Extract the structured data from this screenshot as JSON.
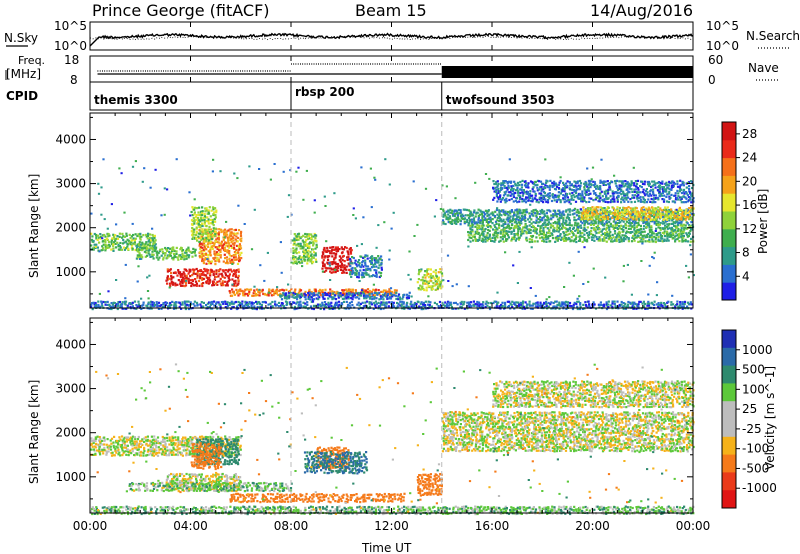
{
  "header": {
    "station": "Prince George (fitACF)",
    "beam": "Beam 15",
    "date": "14/Aug/2016"
  },
  "noise_panel": {
    "left_label": "N.Sky",
    "right_label": "N.Search",
    "tick_top": "10^5",
    "tick_bottom": "10^0",
    "line_color": "#000000"
  },
  "freq_panel": {
    "left_label_1": "Freq.",
    "left_label_2": "[MHz]",
    "right_label": "Nave",
    "left_tick_top": "18",
    "left_tick_bottom": "8",
    "right_tick_top": "60",
    "right_tick_bottom": "0"
  },
  "cpid_panel": {
    "label": "CPID",
    "segments": [
      {
        "name": "themis 3300",
        "start_hour": 0
      },
      {
        "name": "rbsp 200",
        "start_hour": 8
      },
      {
        "name": "twofsound 3503",
        "start_hour": 14
      }
    ]
  },
  "chart_data": [
    {
      "type": "heatmap",
      "panel": "power",
      "ylabel": "Slant Range [km]",
      "xlim": [
        0,
        24
      ],
      "ylim": [
        180,
        4600
      ],
      "y_ticks": [
        1000,
        2000,
        3000,
        4000
      ],
      "colorbar": {
        "label": "Power [dB]",
        "ticks": [
          "4",
          "8",
          "12",
          "16",
          "20",
          "24",
          "28"
        ],
        "colors": [
          "#1f1fe6",
          "#2a6fd0",
          "#2e9b8a",
          "#3fae4e",
          "#8fd23a",
          "#e6e62e",
          "#f5a21a",
          "#f5701a",
          "#ea2a1a",
          "#d21414"
        ],
        "range": [
          0,
          30
        ]
      },
      "regions": [
        {
          "x": [
            0.0,
            2.6
          ],
          "y": [
            1500,
            1900
          ],
          "value": 12
        },
        {
          "x": [
            1.8,
            4.2
          ],
          "y": [
            1300,
            1600
          ],
          "value": 11
        },
        {
          "x": [
            3.0,
            5.9
          ],
          "y": [
            700,
            1100
          ],
          "value": 27
        },
        {
          "x": [
            4.3,
            6.0
          ],
          "y": [
            1200,
            2000
          ],
          "value": 21
        },
        {
          "x": [
            4.0,
            5.0
          ],
          "y": [
            1700,
            2500
          ],
          "value": 14
        },
        {
          "x": [
            5.5,
            12.2
          ],
          "y": [
            480,
            640
          ],
          "value": 22
        },
        {
          "x": [
            7.5,
            12.7
          ],
          "y": [
            400,
            560
          ],
          "value": 5
        },
        {
          "x": [
            9.2,
            10.4
          ],
          "y": [
            1000,
            1600
          ],
          "value": 29
        },
        {
          "x": [
            8.0,
            9.0
          ],
          "y": [
            1200,
            1900
          ],
          "value": 12
        },
        {
          "x": [
            10.3,
            11.6
          ],
          "y": [
            900,
            1400
          ],
          "value": 6
        },
        {
          "x": [
            13.0,
            14.0
          ],
          "y": [
            600,
            1100
          ],
          "value": 15
        },
        {
          "x": [
            14.0,
            24.0
          ],
          "y": [
            2100,
            2450
          ],
          "value": 8
        },
        {
          "x": [
            15.0,
            24.0
          ],
          "y": [
            1700,
            2100
          ],
          "value": 10
        },
        {
          "x": [
            19.5,
            24.0
          ],
          "y": [
            2200,
            2500
          ],
          "value": 17
        },
        {
          "x": [
            16.0,
            24.0
          ],
          "y": [
            2600,
            3100
          ],
          "value": 5
        },
        {
          "x": [
            0.0,
            24.0
          ],
          "y": [
            180,
            360
          ],
          "value": 5
        }
      ]
    },
    {
      "type": "heatmap",
      "panel": "velocity",
      "ylabel": "Slant Range [km]",
      "xlabel": "Time UT",
      "xlim": [
        0,
        24
      ],
      "ylim": [
        180,
        4600
      ],
      "y_ticks": [
        1000,
        2000,
        3000,
        4000
      ],
      "x_ticks": [
        "00:00",
        "04:00",
        "08:00",
        "12:00",
        "16:00",
        "20:00",
        "00:00"
      ],
      "colorbar": {
        "label": "Velocity [m s^-1]",
        "ticks": [
          "1000",
          "500",
          "100",
          "25",
          "-25",
          "-100",
          "-500",
          "-1000"
        ],
        "colors": [
          "#1f2fb4",
          "#2a6aa8",
          "#2e8a6e",
          "#5cc83a",
          "#bdbdbd",
          "#bdbdbd",
          "#f5b21a",
          "#f57a1a",
          "#ea3a1a",
          "#e01414"
        ]
      },
      "regions": [
        {
          "x": [
            0.0,
            6.0
          ],
          "y": [
            1500,
            1950
          ],
          "value": 0
        },
        {
          "x": [
            3.0,
            6.0
          ],
          "y": [
            700,
            1100
          ],
          "value": 0
        },
        {
          "x": [
            4.2,
            5.9
          ],
          "y": [
            1300,
            1900
          ],
          "value": 400
        },
        {
          "x": [
            4.0,
            5.2
          ],
          "y": [
            1200,
            1800
          ],
          "value": -300
        },
        {
          "x": [
            5.5,
            12.5
          ],
          "y": [
            450,
            650
          ],
          "value": -250
        },
        {
          "x": [
            1.5,
            8.0
          ],
          "y": [
            700,
            900
          ],
          "value": 60
        },
        {
          "x": [
            9.0,
            10.3
          ],
          "y": [
            1200,
            1700
          ],
          "value": -300
        },
        {
          "x": [
            8.5,
            11.0
          ],
          "y": [
            1100,
            1600
          ],
          "value": 500
        },
        {
          "x": [
            13.0,
            14.0
          ],
          "y": [
            600,
            1100
          ],
          "value": -400
        },
        {
          "x": [
            14.0,
            24.0
          ],
          "y": [
            1600,
            2500
          ],
          "value": 0
        },
        {
          "x": [
            16.0,
            24.0
          ],
          "y": [
            2600,
            3200
          ],
          "value": 0
        },
        {
          "x": [
            0.0,
            24.0
          ],
          "y": [
            180,
            360
          ],
          "value": 60
        }
      ]
    }
  ]
}
